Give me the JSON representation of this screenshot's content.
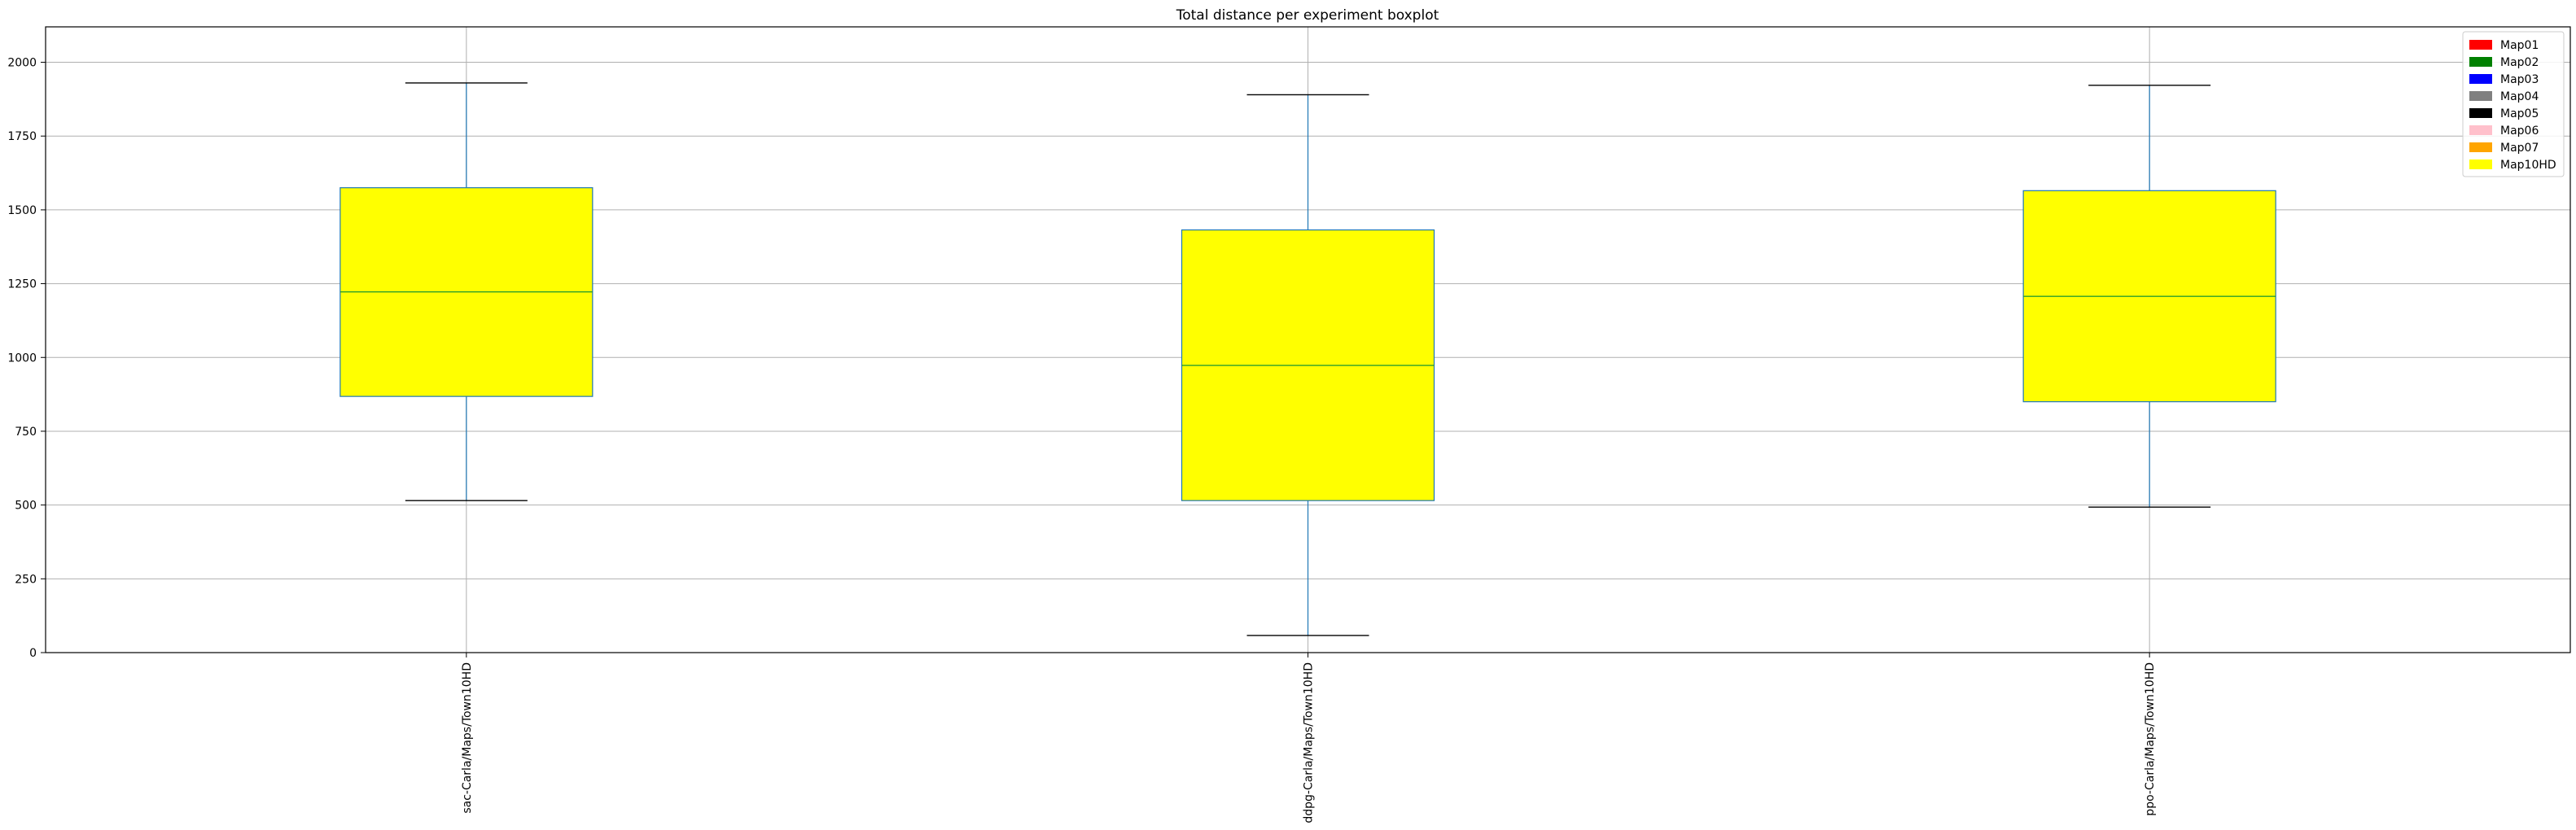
{
  "chart_data": {
    "type": "boxplot",
    "title": "Total distance per experiment boxplot",
    "xlabel": "",
    "ylabel": "",
    "ylim": [
      0,
      2120
    ],
    "yticks": [
      0,
      250,
      500,
      750,
      1000,
      1250,
      1500,
      1750,
      2000
    ],
    "grid": true,
    "box_fill": "#ffff00",
    "box_edge": "#1f77b4",
    "whisker_color": "#1f77b4",
    "cap_color": "#000000",
    "median_color": "#2ca02c",
    "categories": [
      "sac-Carla/Maps/Town10HD",
      "ddpg-Carla/Maps/Town10HD",
      "ppo-Carla/Maps/Town10HD"
    ],
    "boxes": [
      {
        "whislo": 515,
        "q1": 868,
        "med": 1222,
        "q3": 1575,
        "whishi": 1930
      },
      {
        "whislo": 58,
        "q1": 515,
        "med": 973,
        "q3": 1432,
        "whishi": 1890
      },
      {
        "whislo": 493,
        "q1": 850,
        "med": 1207,
        "q3": 1565,
        "whishi": 1922
      }
    ],
    "legend": {
      "position": "top-right",
      "entries": [
        {
          "label": "Map01",
          "color": "#ff0000"
        },
        {
          "label": "Map02",
          "color": "#008000"
        },
        {
          "label": "Map03",
          "color": "#0000ff"
        },
        {
          "label": "Map04",
          "color": "#808080"
        },
        {
          "label": "Map05",
          "color": "#000000"
        },
        {
          "label": "Map06",
          "color": "#ffc0cb"
        },
        {
          "label": "Map07",
          "color": "#ffa500"
        },
        {
          "label": "Map10HD",
          "color": "#ffff00"
        }
      ]
    }
  }
}
